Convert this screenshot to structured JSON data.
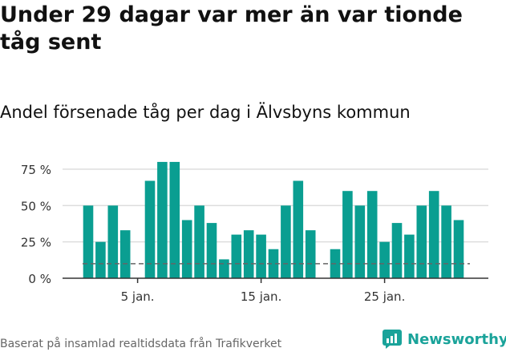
{
  "title": "Under 29 dagar var mer än var tionde tåg sent",
  "subtitle": "Andel försenade tåg per dag i Älvsbyns kommun",
  "source": "Baserat på insamlad realtidsdata från Trafikverket",
  "brand": {
    "name": "Newsworthy",
    "color": "#1aa39a"
  },
  "colors": {
    "bar": "#0a9e91",
    "reference_line": "#666666",
    "grid": "#dddddd",
    "axis": "#333333"
  },
  "chart_data": {
    "type": "bar",
    "x": [
      1,
      2,
      3,
      4,
      5,
      6,
      7,
      8,
      9,
      10,
      11,
      12,
      13,
      14,
      15,
      16,
      17,
      18,
      19,
      20,
      21,
      22,
      23,
      24,
      25,
      26,
      27,
      28,
      29,
      30,
      31
    ],
    "values": [
      50,
      25,
      50,
      33,
      null,
      67,
      80,
      80,
      40,
      50,
      38,
      13,
      30,
      33,
      30,
      20,
      50,
      67,
      33,
      null,
      20,
      60,
      50,
      60,
      25,
      38,
      30,
      50,
      60,
      50,
      40
    ],
    "xticks": [
      {
        "x": 5,
        "label": "5 jan."
      },
      {
        "x": 15,
        "label": "15 jan."
      },
      {
        "x": 25,
        "label": "25 jan."
      }
    ],
    "yticks": [
      {
        "value": 0,
        "label": "0 %"
      },
      {
        "value": 25,
        "label": "25 %"
      },
      {
        "value": 50,
        "label": "50 %"
      },
      {
        "value": 75,
        "label": "75 %"
      }
    ],
    "ylim": [
      0,
      75
    ],
    "reference_value": 10,
    "grid": true
  }
}
